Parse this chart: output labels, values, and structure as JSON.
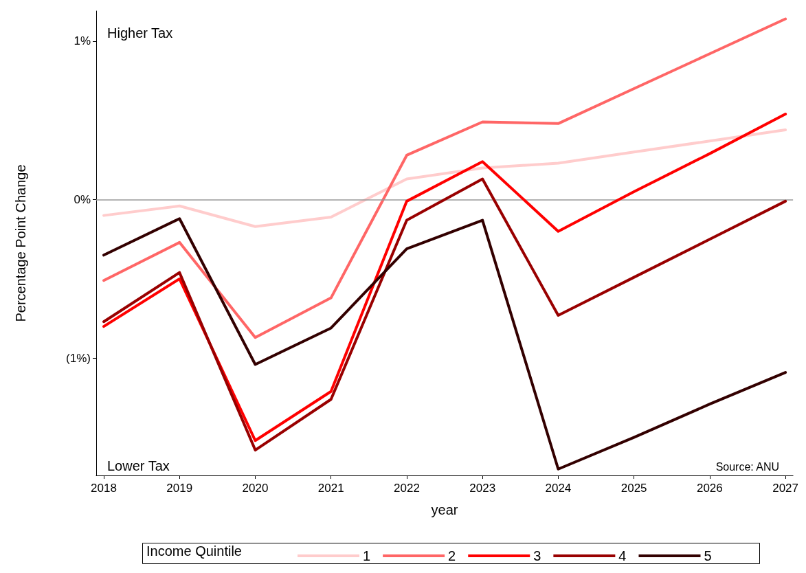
{
  "chart_data": {
    "type": "line",
    "xlabel": "year",
    "ylabel": "Percentage Point Change",
    "legend_title": "Income Quintile",
    "x": [
      2018,
      2019,
      2020,
      2021,
      2022,
      2023,
      2024,
      2025,
      2026,
      2027
    ],
    "xlim": [
      2017.9,
      2027.1
    ],
    "xticks": [
      2018,
      2019,
      2020,
      2021,
      2022,
      2023,
      2024,
      2025,
      2026,
      2027
    ],
    "ylim": [
      -1.74,
      1.19
    ],
    "yticks": [
      {
        "value": 1,
        "label": "1%"
      },
      {
        "value": 0,
        "label": "0%"
      },
      {
        "value": -1,
        "label": "(1%)"
      }
    ],
    "grid": false,
    "legend": "bottom",
    "marker": "none",
    "line_style": "solid",
    "ref_lines": [
      {
        "axis": "y",
        "value": 0,
        "color": "#999999"
      }
    ],
    "annotations": [
      "Higher Tax",
      "Lower Tax",
      "Source: ANU"
    ],
    "series": [
      {
        "name": "1",
        "color": "#ffcccc",
        "values": [
          -0.1,
          -0.04,
          -0.17,
          -0.11,
          0.13,
          0.2,
          0.23,
          0.3,
          0.37,
          0.44
        ]
      },
      {
        "name": "2",
        "color": "#ff6666",
        "values": [
          -0.51,
          -0.27,
          -0.87,
          -0.62,
          0.28,
          0.49,
          0.48,
          0.7,
          0.92,
          1.14
        ]
      },
      {
        "name": "3",
        "color": "#ff0000",
        "values": [
          -0.8,
          -0.5,
          -1.52,
          -1.21,
          -0.01,
          0.24,
          -0.2,
          0.05,
          0.29,
          0.54
        ]
      },
      {
        "name": "4",
        "color": "#990000",
        "values": [
          -0.77,
          -0.46,
          -1.58,
          -1.26,
          -0.13,
          0.13,
          -0.73,
          -0.49,
          -0.25,
          -0.01
        ]
      },
      {
        "name": "5",
        "color": "#330000",
        "values": [
          -0.35,
          -0.12,
          -1.04,
          -0.81,
          -0.31,
          -0.13,
          -1.7,
          -1.5,
          -1.29,
          -1.09
        ]
      }
    ]
  }
}
